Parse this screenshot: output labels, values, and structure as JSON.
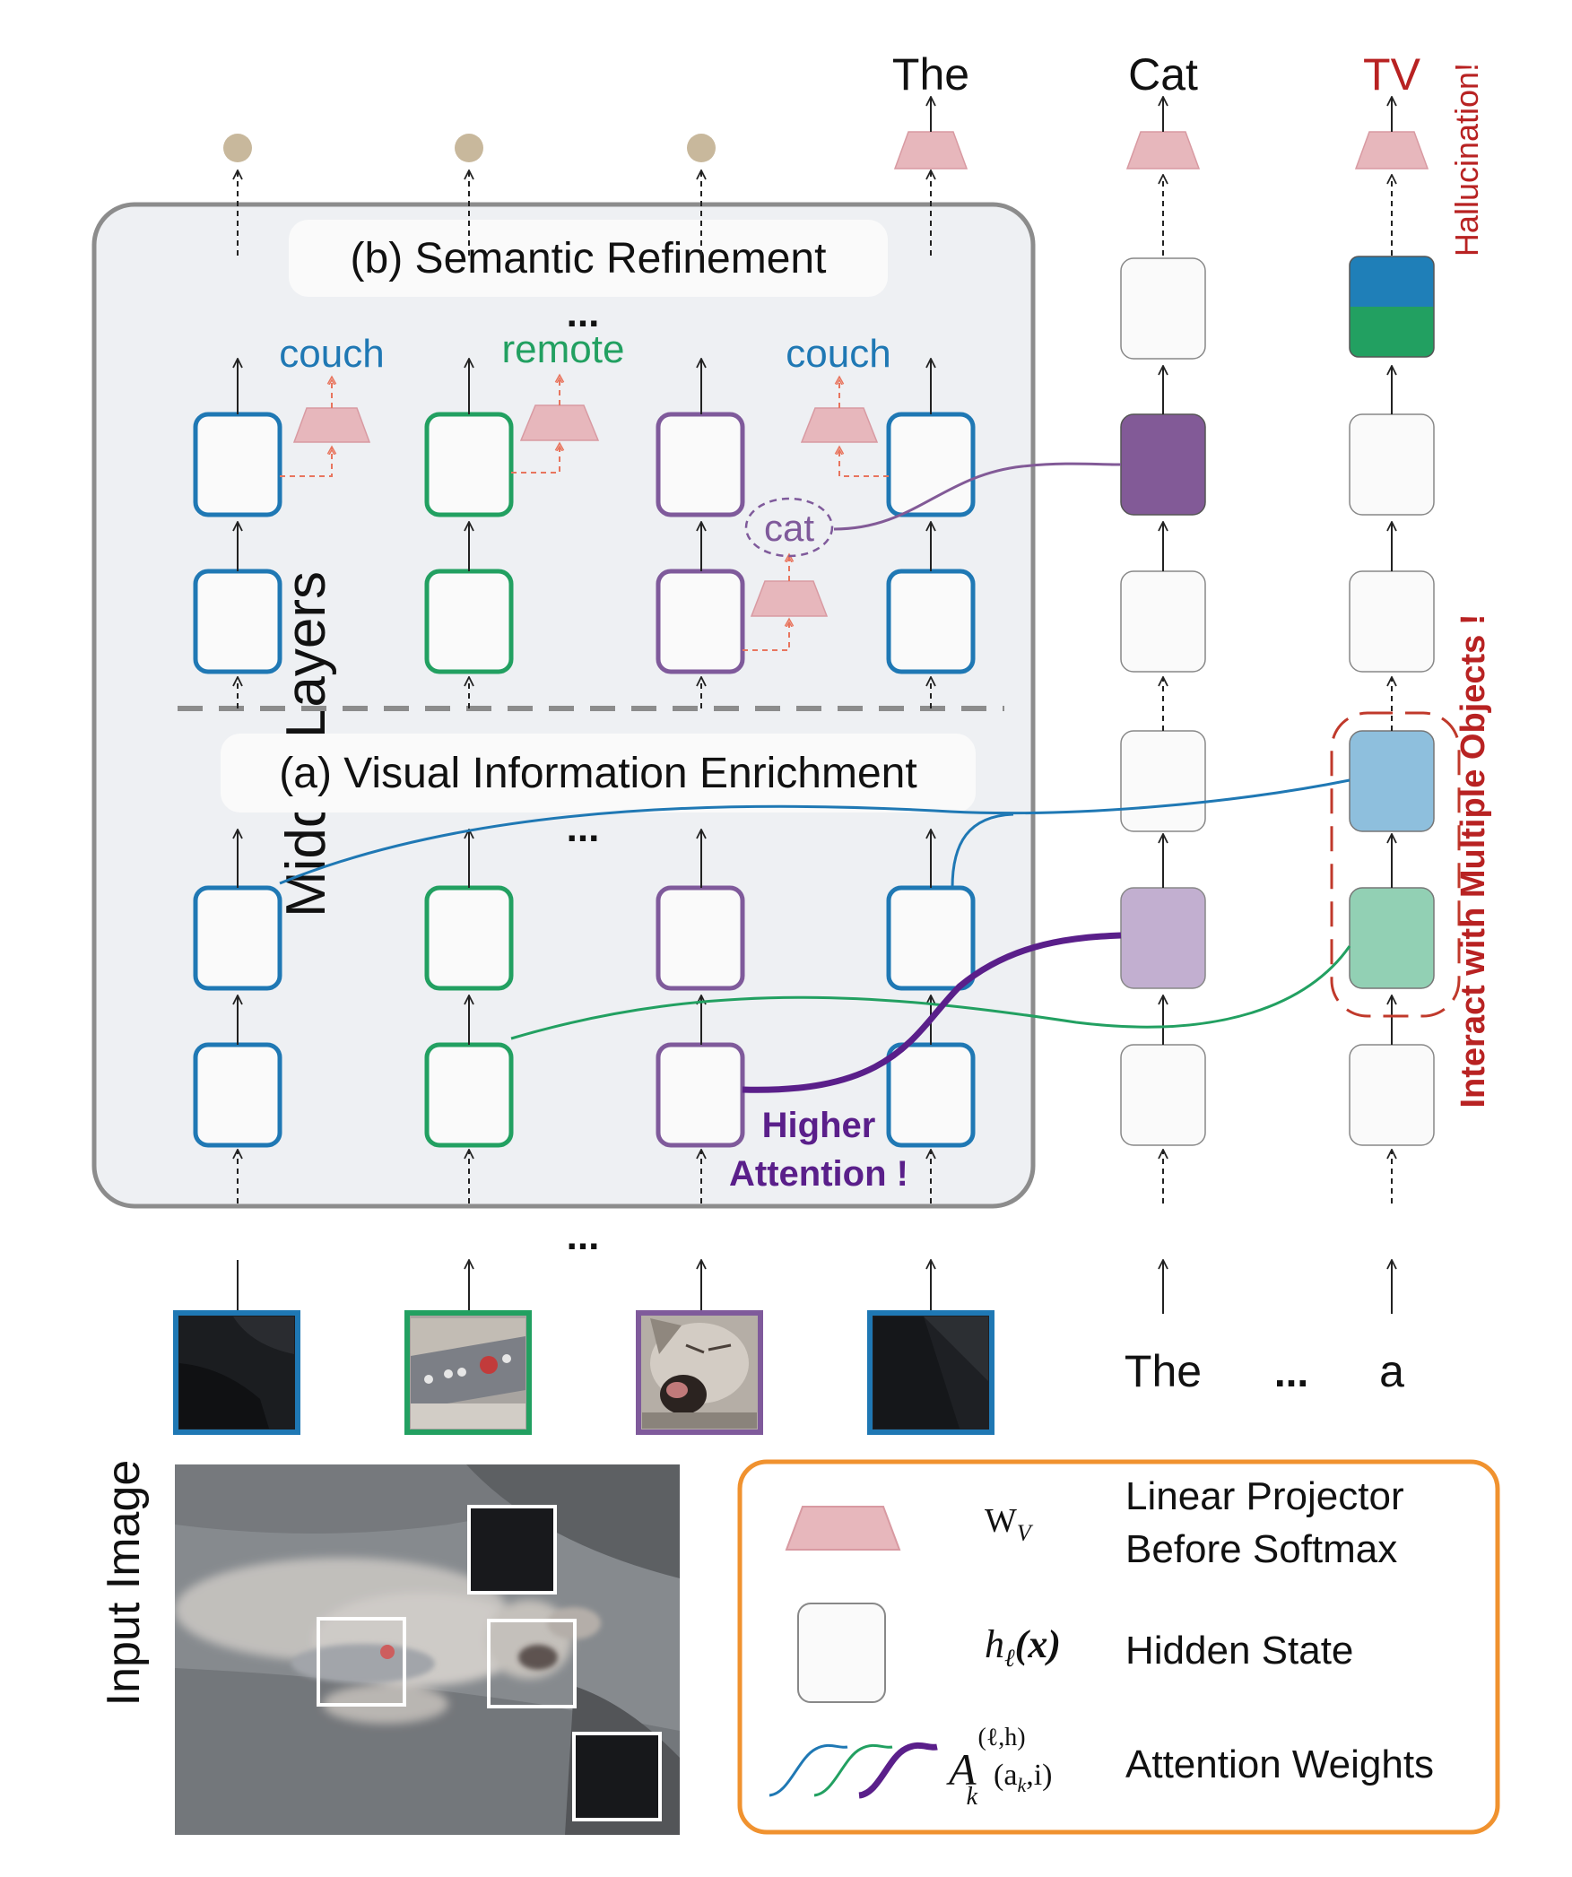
{
  "panel": {
    "side_label": "Middle Layers",
    "stage_b_title": "(b) Semantic Refinement",
    "stage_a_title": "(a) Visual Information Enrichment",
    "ellipsis": "..."
  },
  "outputs": {
    "word_1": "The",
    "word_2": "Cat",
    "word_3": "TV",
    "hallucination_note": "Hallucination!"
  },
  "refinement_words": {
    "blue_left": "couch",
    "green": "remote",
    "purple": "cat",
    "blue_right": "couch"
  },
  "annotations": {
    "higher_attention_line1": "Higher",
    "higher_attention_line2": "Attention !",
    "multi_object": "Interact with Multiple Objects !"
  },
  "text_inputs": {
    "token_1": "The",
    "ellipsis": "...",
    "token_2": "a"
  },
  "input_image_label": "Input Image",
  "legend": {
    "projector_symbol": "W",
    "projector_sub": "V",
    "projector_line1": "Linear Projector",
    "projector_line2": "Before Softmax",
    "hidden_symbol": "h",
    "hidden_sub": "ℓ",
    "hidden_arg": "(x)",
    "hidden_label": "Hidden State",
    "attn_symbol": "A",
    "attn_sup": "(ℓ,h)",
    "attn_sub": "k",
    "attn_arg": "(a",
    "attn_arg_sub": "k",
    "attn_arg_end": ",i)",
    "attn_label": "Attention Weights"
  },
  "colors": {
    "couch_blue": "#1f78b4",
    "remote_green": "#22a061",
    "cat_purple": "#7f5a9b",
    "higher_attention": "#5a1f8a",
    "hallucination_red": "#b82222",
    "projector_pink": "#e7b7bc",
    "legend_border": "#f0922f",
    "panel_fill": "#eef0f3",
    "panel_border": "#8c8c8c",
    "beige_dot": "#c8b89c"
  }
}
